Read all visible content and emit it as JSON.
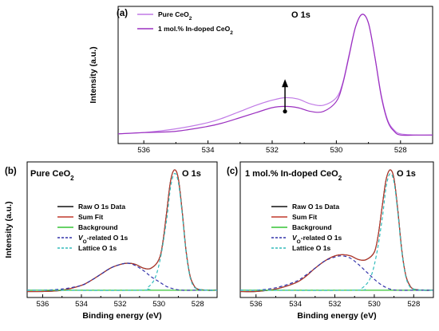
{
  "chart_data": [
    {
      "panel": "(a)",
      "type": "line",
      "title": "O 1s",
      "ylabel": "Intensity (a.u.)",
      "xlabel": "",
      "x_reversed": true,
      "xlim": [
        536.8,
        527.0
      ],
      "xticks": [
        "536",
        "534",
        "532",
        "530",
        "528"
      ],
      "ylim": [
        0,
        1
      ],
      "legend": [
        {
          "name": "Pure CeO",
          "sub": "2",
          "color": "#c07ae6"
        },
        {
          "name": "1 mol.% In-doped CeO",
          "sub": "2",
          "color": "#9b30c0"
        }
      ],
      "annotation": {
        "type": "arrow-up",
        "x": 531.6,
        "y_from": 0.22,
        "y_to": 0.46
      },
      "series": [
        {
          "name": "Pure CeO2",
          "color": "#c07ae6",
          "x": [
            536.8,
            536,
            535,
            534,
            533.5,
            533,
            532.5,
            532,
            531.6,
            531.2,
            530.8,
            530.4,
            530,
            529.8,
            529.6,
            529.4,
            529.2,
            529.0,
            528.8,
            528.6,
            528.4,
            528.2,
            528,
            527.5,
            527
          ],
          "y": [
            0.04,
            0.05,
            0.08,
            0.13,
            0.17,
            0.22,
            0.27,
            0.31,
            0.33,
            0.32,
            0.28,
            0.27,
            0.33,
            0.45,
            0.68,
            0.9,
            1.0,
            0.93,
            0.66,
            0.35,
            0.15,
            0.07,
            0.04,
            0.03,
            0.03
          ]
        },
        {
          "name": "1 mol.% In-doped CeO2",
          "color": "#9b30c0",
          "x": [
            536.8,
            536,
            535,
            534,
            533.5,
            533,
            532.5,
            532,
            531.6,
            531.2,
            530.8,
            530.4,
            530,
            529.8,
            529.6,
            529.4,
            529.2,
            529.0,
            528.8,
            528.6,
            528.4,
            528.2,
            528,
            527.5,
            527
          ],
          "y": [
            0.04,
            0.05,
            0.06,
            0.1,
            0.13,
            0.17,
            0.21,
            0.25,
            0.26,
            0.25,
            0.22,
            0.22,
            0.3,
            0.44,
            0.67,
            0.9,
            1.0,
            0.93,
            0.66,
            0.34,
            0.14,
            0.06,
            0.03,
            0.03,
            0.03
          ]
        }
      ]
    },
    {
      "panel": "(b)",
      "type": "line",
      "title": "O 1s",
      "subtitle": "Pure CeO",
      "subtitle_sub": "2",
      "ylabel": "Intensity (a.u.)",
      "xlabel": "Binding energy (eV)",
      "x_reversed": true,
      "xlim": [
        536.8,
        527.0
      ],
      "xticks": [
        "536",
        "534",
        "532",
        "530",
        "528"
      ],
      "ylim": [
        0,
        1
      ],
      "legend": [
        {
          "name": "Raw O 1s Data",
          "color": "#111111",
          "style": "solid"
        },
        {
          "name": "Sum Fit",
          "color": "#c0392b",
          "style": "solid"
        },
        {
          "name": "Background",
          "color": "#35c435",
          "style": "solid"
        },
        {
          "name": "V",
          "sub": "O",
          "rest": "-related O 1s",
          "color": "#3333aa",
          "style": "dashed"
        },
        {
          "name": "Lattice O 1s",
          "color": "#33bcbc",
          "style": "dashed"
        }
      ],
      "series": [
        {
          "name": "Raw O 1s Data",
          "color": "#111111",
          "x": [
            536.8,
            536,
            535,
            534,
            533.5,
            533,
            532.5,
            532,
            531.6,
            531.2,
            530.8,
            530.4,
            530,
            529.8,
            529.6,
            529.4,
            529.2,
            529.0,
            528.8,
            528.6,
            528.4,
            528.2,
            528,
            527.5,
            527
          ],
          "y": [
            0.01,
            0.01,
            0.02,
            0.06,
            0.1,
            0.15,
            0.2,
            0.23,
            0.24,
            0.23,
            0.2,
            0.2,
            0.27,
            0.41,
            0.66,
            0.91,
            1.0,
            0.93,
            0.66,
            0.34,
            0.14,
            0.06,
            0.03,
            0.02,
            0.02
          ]
        },
        {
          "name": "Sum Fit",
          "color": "#c0392b",
          "x": [
            536.8,
            536,
            535,
            534,
            533.5,
            533,
            532.5,
            532,
            531.6,
            531.2,
            530.8,
            530.4,
            530,
            529.8,
            529.6,
            529.4,
            529.2,
            529.0,
            528.8,
            528.6,
            528.4,
            528.2,
            528,
            527.5,
            527
          ],
          "y": [
            0.01,
            0.01,
            0.02,
            0.06,
            0.1,
            0.15,
            0.2,
            0.23,
            0.24,
            0.23,
            0.2,
            0.2,
            0.27,
            0.41,
            0.66,
            0.91,
            1.0,
            0.93,
            0.66,
            0.34,
            0.14,
            0.06,
            0.03,
            0.02,
            0.02
          ]
        },
        {
          "name": "Background",
          "color": "#35c435",
          "x": [
            536.8,
            527
          ],
          "y": [
            0.02,
            0.02
          ]
        },
        {
          "name": "VO-related O 1s",
          "color": "#3333aa",
          "x": [
            536.8,
            536,
            535,
            534,
            533.5,
            533,
            532.5,
            532,
            531.6,
            531.2,
            530.8,
            530.4,
            530,
            529.6,
            529.2,
            528.8,
            528,
            527
          ],
          "y": [
            0.02,
            0.02,
            0.03,
            0.06,
            0.1,
            0.15,
            0.2,
            0.23,
            0.24,
            0.22,
            0.18,
            0.13,
            0.09,
            0.05,
            0.03,
            0.02,
            0.02,
            0.02
          ]
        },
        {
          "name": "Lattice O 1s",
          "color": "#33bcbc",
          "x": [
            536.8,
            531,
            530.6,
            530.2,
            529.9,
            529.6,
            529.4,
            529.2,
            529.0,
            528.8,
            528.6,
            528.4,
            528.2,
            528,
            527.5,
            527
          ],
          "y": [
            0.02,
            0.02,
            0.04,
            0.12,
            0.3,
            0.6,
            0.86,
            0.97,
            0.9,
            0.64,
            0.33,
            0.13,
            0.05,
            0.03,
            0.02,
            0.02
          ]
        }
      ]
    },
    {
      "panel": "(c)",
      "type": "line",
      "title": "O 1s",
      "subtitle": "1 mol.% In-doped CeO",
      "subtitle_sub": "2",
      "ylabel": "",
      "xlabel": "Binding energy (eV)",
      "x_reversed": true,
      "xlim": [
        536.8,
        527.0
      ],
      "xticks": [
        "536",
        "534",
        "532",
        "530",
        "528"
      ],
      "ylim": [
        0,
        1
      ],
      "legend": [
        {
          "name": "Raw O 1s Data",
          "color": "#111111",
          "style": "solid"
        },
        {
          "name": "Sum Fit",
          "color": "#c0392b",
          "style": "solid"
        },
        {
          "name": "Background",
          "color": "#35c435",
          "style": "solid"
        },
        {
          "name": "V",
          "sub": "O",
          "rest": "-related O 1s",
          "color": "#3333aa",
          "style": "dashed"
        },
        {
          "name": "Lattice O 1s",
          "color": "#33bcbc",
          "style": "dashed"
        }
      ],
      "series": [
        {
          "name": "Raw O 1s Data",
          "color": "#111111",
          "x": [
            536.8,
            536,
            535,
            534,
            533.5,
            533,
            532.5,
            532,
            531.6,
            531.2,
            530.8,
            530.4,
            530,
            529.8,
            529.6,
            529.4,
            529.2,
            529.0,
            528.8,
            528.6,
            528.4,
            528.2,
            528,
            527.5,
            527
          ],
          "y": [
            0.01,
            0.01,
            0.03,
            0.08,
            0.13,
            0.2,
            0.26,
            0.3,
            0.31,
            0.3,
            0.27,
            0.27,
            0.33,
            0.47,
            0.7,
            0.92,
            1.0,
            0.93,
            0.66,
            0.34,
            0.14,
            0.06,
            0.03,
            0.02,
            0.02
          ]
        },
        {
          "name": "Sum Fit",
          "color": "#c0392b",
          "x": [
            536.8,
            536,
            535,
            534,
            533.5,
            533,
            532.5,
            532,
            531.6,
            531.2,
            530.8,
            530.4,
            530,
            529.8,
            529.6,
            529.4,
            529.2,
            529.0,
            528.8,
            528.6,
            528.4,
            528.2,
            528,
            527.5,
            527
          ],
          "y": [
            0.01,
            0.01,
            0.03,
            0.08,
            0.13,
            0.2,
            0.26,
            0.3,
            0.31,
            0.3,
            0.27,
            0.27,
            0.33,
            0.47,
            0.7,
            0.92,
            1.0,
            0.93,
            0.66,
            0.34,
            0.14,
            0.06,
            0.03,
            0.02,
            0.02
          ]
        },
        {
          "name": "Background",
          "color": "#35c435",
          "x": [
            536.8,
            527
          ],
          "y": [
            0.02,
            0.02
          ]
        },
        {
          "name": "VO-related O 1s",
          "color": "#3333aa",
          "x": [
            536.8,
            536,
            535,
            534,
            533.5,
            533,
            532.5,
            532,
            531.6,
            531.2,
            530.8,
            530.4,
            530,
            529.6,
            529.2,
            528.8,
            528,
            527
          ],
          "y": [
            0.02,
            0.02,
            0.04,
            0.09,
            0.14,
            0.2,
            0.26,
            0.29,
            0.3,
            0.28,
            0.23,
            0.17,
            0.11,
            0.06,
            0.03,
            0.02,
            0.02,
            0.02
          ]
        },
        {
          "name": "Lattice O 1s",
          "color": "#33bcbc",
          "x": [
            536.8,
            531,
            530.6,
            530.2,
            529.9,
            529.6,
            529.4,
            529.2,
            529.0,
            528.8,
            528.6,
            528.4,
            528.2,
            528,
            527.5,
            527
          ],
          "y": [
            0.02,
            0.02,
            0.04,
            0.12,
            0.3,
            0.6,
            0.86,
            0.97,
            0.9,
            0.64,
            0.33,
            0.13,
            0.05,
            0.03,
            0.02,
            0.02
          ]
        }
      ]
    }
  ]
}
